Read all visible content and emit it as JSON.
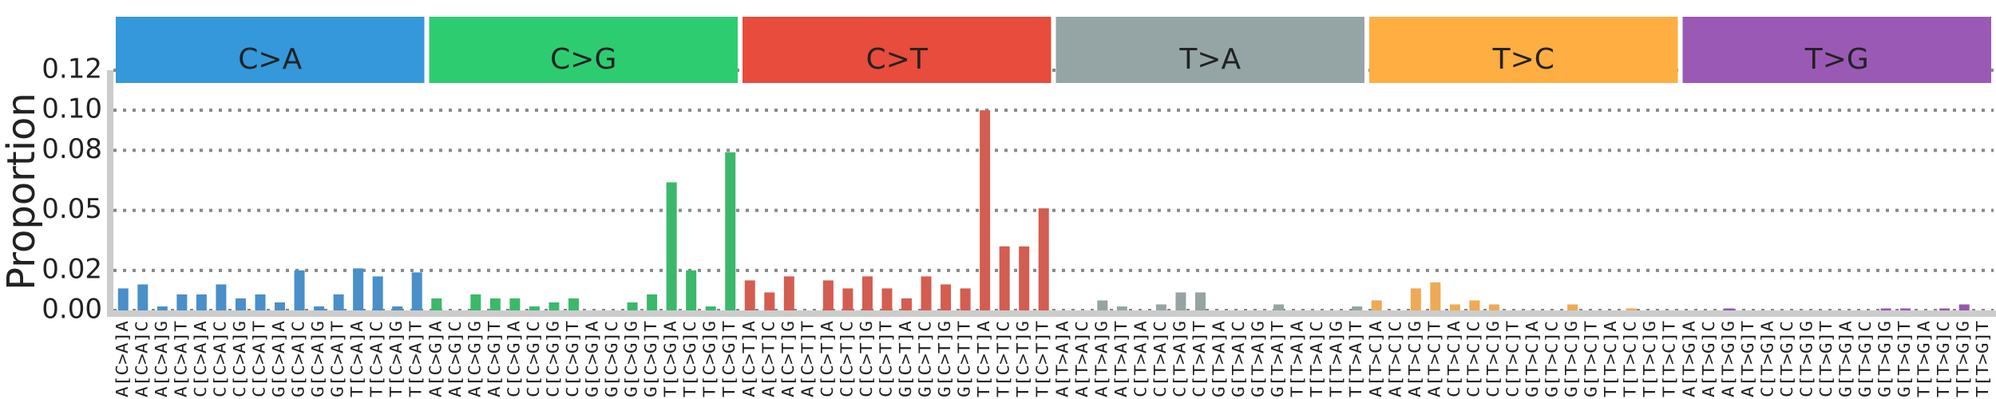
{
  "chart_data": {
    "type": "bar",
    "y_label": "Proportion",
    "ylim": [
      0,
      0.12
    ],
    "yticks": [
      {
        "value": 0,
        "label": "0.00"
      },
      {
        "value": 0.02,
        "label": "0.02"
      },
      {
        "value": 0.05,
        "label": "0.05"
      },
      {
        "value": 0.08,
        "label": "0.08"
      },
      {
        "value": 0.1,
        "label": "0.10"
      },
      {
        "value": 0.12,
        "label": "0.12"
      }
    ],
    "grid": true,
    "groups": [
      {
        "name": "C>A",
        "color": "#3498db",
        "bar_color": "#4a8fc8"
      },
      {
        "name": "C>G",
        "color": "#2ecc71",
        "bar_color": "#3cb86a"
      },
      {
        "name": "C>T",
        "color": "#e74c3c",
        "bar_color": "#d35d50"
      },
      {
        "name": "T>A",
        "color": "#95a5a6",
        "bar_color": "#97a3a3"
      },
      {
        "name": "T>C",
        "color": "#ffae42",
        "bar_color": "#eeaa55"
      },
      {
        "name": "T>G",
        "color": "#9b59b6",
        "bar_color": "#9358b0"
      }
    ],
    "categories": [
      "A[C>A]A",
      "A[C>A]C",
      "A[C>A]G",
      "A[C>A]T",
      "C[C>A]A",
      "C[C>A]C",
      "C[C>A]G",
      "C[C>A]T",
      "G[C>A]A",
      "G[C>A]C",
      "G[C>A]G",
      "G[C>A]T",
      "T[C>A]A",
      "T[C>A]C",
      "T[C>A]G",
      "T[C>A]T",
      "A[C>G]A",
      "A[C>G]C",
      "A[C>G]G",
      "A[C>G]T",
      "C[C>G]A",
      "C[C>G]C",
      "C[C>G]G",
      "C[C>G]T",
      "G[C>G]A",
      "G[C>G]C",
      "G[C>G]G",
      "G[C>G]T",
      "T[C>G]A",
      "T[C>G]C",
      "T[C>G]G",
      "T[C>G]T",
      "A[C>T]A",
      "A[C>T]C",
      "A[C>T]G",
      "A[C>T]T",
      "C[C>T]A",
      "C[C>T]C",
      "C[C>T]G",
      "C[C>T]T",
      "G[C>T]A",
      "G[C>T]C",
      "G[C>T]G",
      "G[C>T]T",
      "T[C>T]A",
      "T[C>T]C",
      "T[C>T]G",
      "T[C>T]T",
      "A[T>A]A",
      "A[T>A]C",
      "A[T>A]G",
      "A[T>A]T",
      "C[T>A]A",
      "C[T>A]C",
      "C[T>A]G",
      "C[T>A]T",
      "G[T>A]A",
      "G[T>A]C",
      "G[T>A]G",
      "G[T>A]T",
      "T[T>A]A",
      "T[T>A]C",
      "T[T>A]G",
      "T[T>A]T",
      "A[T>C]A",
      "A[T>C]C",
      "A[T>C]G",
      "A[T>C]T",
      "C[T>C]A",
      "C[T>C]C",
      "C[T>C]G",
      "C[T>C]T",
      "G[T>C]A",
      "G[T>C]C",
      "G[T>C]G",
      "G[T>C]T",
      "T[T>C]A",
      "T[T>C]C",
      "T[T>C]G",
      "T[T>C]T",
      "A[T>G]A",
      "A[T>G]C",
      "A[T>G]G",
      "A[T>G]T",
      "C[T>G]A",
      "C[T>G]C",
      "C[T>G]G",
      "C[T>G]T",
      "G[T>G]A",
      "G[T>G]C",
      "G[T>G]G",
      "G[T>G]T",
      "T[T>G]A",
      "T[T>G]C",
      "T[T>G]G",
      "T[T>G]T"
    ],
    "values": [
      0.011,
      0.013,
      0.002,
      0.008,
      0.008,
      0.013,
      0.006,
      0.008,
      0.004,
      0.02,
      0.002,
      0.008,
      0.021,
      0.017,
      0.002,
      0.019,
      0.006,
      0,
      0.008,
      0.006,
      0.006,
      0.002,
      0.004,
      0.006,
      0,
      0,
      0.004,
      0.008,
      0.064,
      0.02,
      0.002,
      0.079,
      0.015,
      0.009,
      0.017,
      0,
      0.015,
      0.011,
      0.017,
      0.011,
      0.006,
      0.017,
      0.013,
      0.011,
      0.1,
      0.032,
      0.032,
      0.051,
      0,
      0,
      0.005,
      0.002,
      0,
      0.003,
      0.009,
      0.009,
      0,
      0,
      0,
      0.003,
      0,
      0,
      0,
      0.002,
      0.005,
      0,
      0.011,
      0.014,
      0.003,
      0.005,
      0.003,
      0,
      0,
      0,
      0.003,
      0,
      0,
      0.001,
      0,
      0,
      0,
      0,
      0.001,
      0,
      0,
      0,
      0,
      0,
      0,
      0,
      0.001,
      0.001,
      0,
      0.001,
      0.003,
      0
    ]
  }
}
